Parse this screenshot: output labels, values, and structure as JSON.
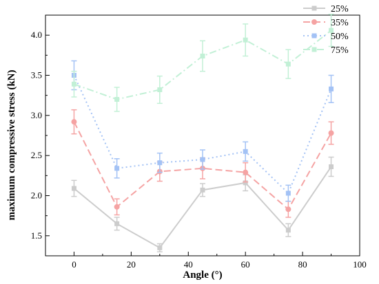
{
  "chart_data": {
    "type": "line",
    "xlabel": "Angle (°)",
    "ylabel": "maximum compressive stress (kN)",
    "xlim": [
      -10,
      100
    ],
    "ylim": [
      1.25,
      4.25
    ],
    "xticks": [
      0,
      20,
      40,
      60,
      80,
      100
    ],
    "yticks": [
      1.5,
      2.0,
      2.5,
      3.0,
      3.5,
      4.0
    ],
    "x": [
      0,
      15,
      30,
      45,
      60,
      75,
      90
    ],
    "grid": false,
    "legend_position": "top-right",
    "series": [
      {
        "name": "25%",
        "color": "#cccccc",
        "dash": "solid",
        "marker": "square",
        "values": [
          2.09,
          1.65,
          1.35,
          2.07,
          2.16,
          1.57,
          2.36
        ],
        "errors": [
          0.1,
          0.08,
          0.05,
          0.08,
          0.1,
          0.08,
          0.12
        ]
      },
      {
        "name": "35%",
        "color": "#f5a3a3",
        "dash": "dash",
        "marker": "circle",
        "values": [
          2.92,
          1.86,
          2.3,
          2.34,
          2.29,
          1.83,
          2.78
        ],
        "errors": [
          0.15,
          0.1,
          0.12,
          0.13,
          0.12,
          0.1,
          0.14
        ]
      },
      {
        "name": "50%",
        "color": "#a3c2f5",
        "dash": "dot",
        "marker": "square",
        "values": [
          3.5,
          2.34,
          2.41,
          2.45,
          2.55,
          2.03,
          3.33
        ],
        "errors": [
          0.18,
          0.12,
          0.12,
          0.12,
          0.12,
          0.1,
          0.17
        ]
      },
      {
        "name": "75%",
        "color": "#c2f0d6",
        "dash": "dashdot",
        "marker": "square",
        "values": [
          3.39,
          3.2,
          3.32,
          3.74,
          3.94,
          3.64,
          4.06
        ],
        "errors": [
          0.16,
          0.15,
          0.17,
          0.19,
          0.2,
          0.18,
          0.2
        ]
      }
    ]
  }
}
